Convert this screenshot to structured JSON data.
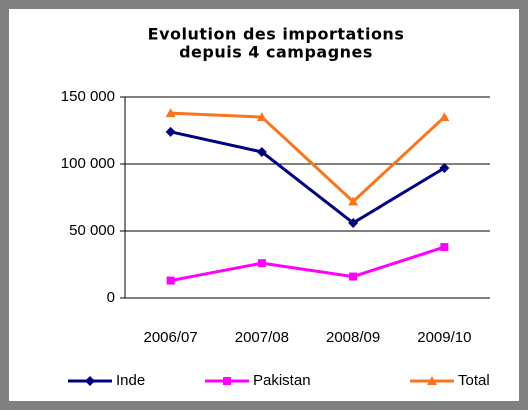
{
  "chart_data": {
    "type": "line",
    "title": [
      "Evolution des importations",
      "depuis 4 campagnes"
    ],
    "categories": [
      "2006/07",
      "2007/08",
      "2008/09",
      "2009/10"
    ],
    "series": [
      {
        "name": "Inde",
        "color": "#000080",
        "marker": "diamond",
        "values": [
          124000,
          109000,
          56000,
          97000
        ]
      },
      {
        "name": "Pakistan",
        "color": "#ff00ff",
        "marker": "square",
        "values": [
          13000,
          26000,
          16000,
          38000
        ]
      },
      {
        "name": "Total",
        "color": "#f7761f",
        "marker": "triangle",
        "values": [
          138000,
          135000,
          72000,
          135000
        ]
      }
    ],
    "ylim": [
      0,
      150000
    ],
    "yticks": [
      {
        "value": 0,
        "label": "0"
      },
      {
        "value": 50000,
        "label": "50 000"
      },
      {
        "value": 100000,
        "label": "100 000"
      },
      {
        "value": 150000,
        "label": "150 000"
      }
    ],
    "grid": true,
    "legend": "bottom"
  }
}
